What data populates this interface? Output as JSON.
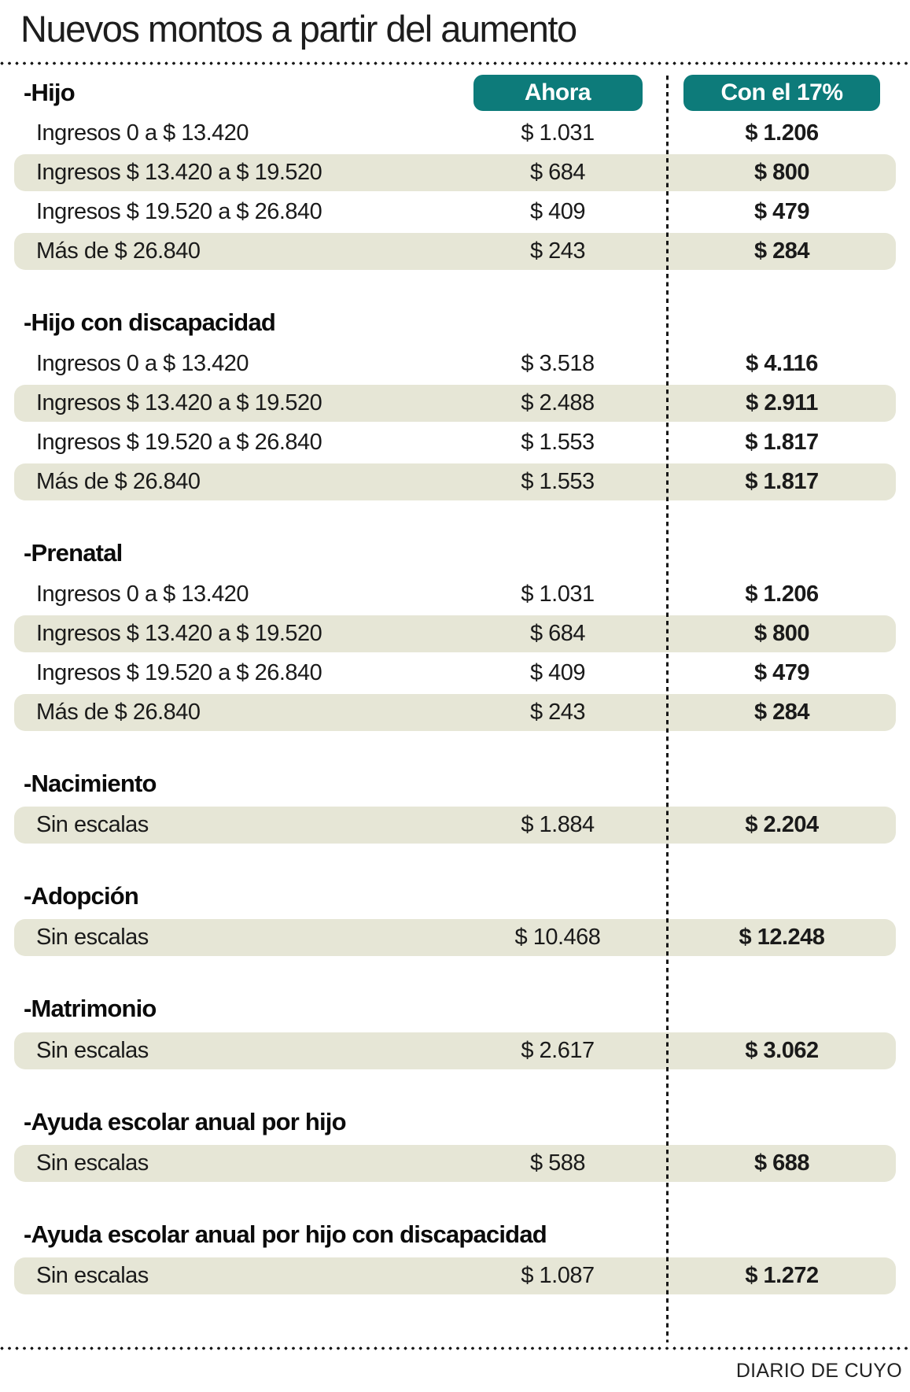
{
  "title": "Nuevos montos a partir del aumento",
  "colors": {
    "accent_teal": "#0d7b7a",
    "row_shade": "#e6e6d6"
  },
  "footer": {
    "credit": "DIARIO DE CUYO"
  },
  "chart_data": {
    "type": "table",
    "title": "Nuevos montos a partir del aumento",
    "columns": [
      "Ahora",
      "Con el 17%"
    ],
    "sections": [
      {
        "name": "-Hijo",
        "rows": [
          {
            "label": "Ingresos 0 a $ 13.420",
            "ahora": "$ 1.031",
            "con17": "$ 1.206",
            "shaded": false
          },
          {
            "label": "Ingresos $ 13.420 a $ 19.520",
            "ahora": "$ 684",
            "con17": "$ 800",
            "shaded": true
          },
          {
            "label": "Ingresos $ 19.520 a $ 26.840",
            "ahora": "$ 409",
            "con17": "$ 479",
            "shaded": false
          },
          {
            "label": "Más de $ 26.840",
            "ahora": "$ 243",
            "con17": "$ 284",
            "shaded": true
          }
        ]
      },
      {
        "name": "-Hijo con discapacidad",
        "rows": [
          {
            "label": "Ingresos 0 a $ 13.420",
            "ahora": "$ 3.518",
            "con17": "$ 4.116",
            "shaded": false
          },
          {
            "label": "Ingresos $ 13.420 a $ 19.520",
            "ahora": "$ 2.488",
            "con17": "$ 2.911",
            "shaded": true
          },
          {
            "label": "Ingresos $ 19.520 a $ 26.840",
            "ahora": "$ 1.553",
            "con17": "$ 1.817",
            "shaded": false
          },
          {
            "label": "Más de $ 26.840",
            "ahora": "$ 1.553",
            "con17": "$ 1.817",
            "shaded": true
          }
        ]
      },
      {
        "name": "-Prenatal",
        "rows": [
          {
            "label": "Ingresos 0 a $ 13.420",
            "ahora": "$ 1.031",
            "con17": "$ 1.206",
            "shaded": false
          },
          {
            "label": "Ingresos $ 13.420 a $ 19.520",
            "ahora": "$ 684",
            "con17": "$ 800",
            "shaded": true
          },
          {
            "label": "Ingresos $ 19.520 a $ 26.840",
            "ahora": "$ 409",
            "con17": "$ 479",
            "shaded": false
          },
          {
            "label": "Más de $ 26.840",
            "ahora": "$ 243",
            "con17": "$ 284",
            "shaded": true
          }
        ]
      },
      {
        "name": "-Nacimiento",
        "rows": [
          {
            "label": "Sin escalas",
            "ahora": "$ 1.884",
            "con17": "$ 2.204",
            "shaded": true
          }
        ]
      },
      {
        "name": "-Adopción",
        "rows": [
          {
            "label": "Sin escalas",
            "ahora": "$ 10.468",
            "con17": "$ 12.248",
            "shaded": true
          }
        ]
      },
      {
        "name": "-Matrimonio",
        "rows": [
          {
            "label": "Sin escalas",
            "ahora": "$ 2.617",
            "con17": "$ 3.062",
            "shaded": true
          }
        ]
      },
      {
        "name": "-Ayuda escolar anual por hijo",
        "rows": [
          {
            "label": "Sin escalas",
            "ahora": "$ 588",
            "con17": "$ 688",
            "shaded": true
          }
        ]
      },
      {
        "name": "-Ayuda escolar anual por hijo con discapacidad",
        "rows": [
          {
            "label": "Sin escalas",
            "ahora": "$ 1.087",
            "con17": "$ 1.272",
            "shaded": true
          }
        ]
      }
    ]
  }
}
